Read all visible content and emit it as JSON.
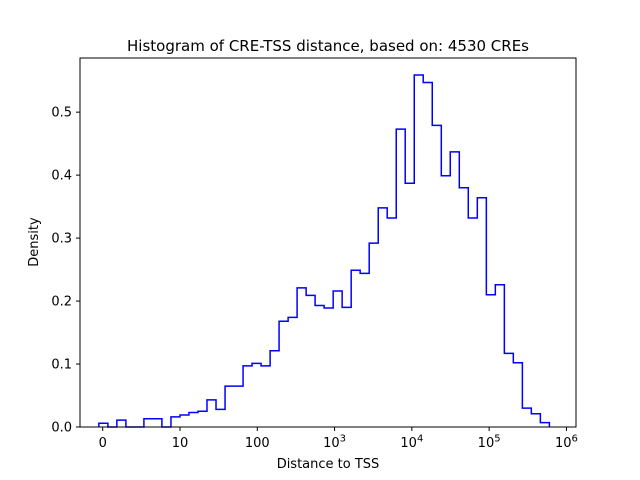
{
  "chart_data": {
    "type": "bar",
    "subtype": "step-histogram",
    "title": "Histogram of CRE-TSS distance, based on: 4530 CREs",
    "xlabel": "Distance to TSS",
    "ylabel": "Density",
    "x_scale": "symlog (linear from 0 to 10, then one decade per unit; u=0 maps to 0, u=k maps to 10^k)",
    "grid": false,
    "legend": "none",
    "line_color": "#0000ff",
    "axis_color": "#000000",
    "background_color": "#ffffff",
    "xlim_u": [
      -0.294,
      6.124
    ],
    "ylim": [
      0,
      0.586
    ],
    "bin_edges_u": [
      -0.05,
      0.067,
      0.183,
      0.3,
      0.417,
      0.533,
      0.65,
      0.766,
      0.883,
      1.0,
      1.116,
      1.233,
      1.349,
      1.466,
      1.583,
      1.699,
      1.816,
      1.932,
      2.049,
      2.166,
      2.282,
      2.399,
      2.515,
      2.632,
      2.748,
      2.865,
      2.982,
      3.098,
      3.215,
      3.331,
      3.448,
      3.565,
      3.681,
      3.798,
      3.914,
      4.031,
      4.147,
      4.264,
      4.381,
      4.497,
      4.614,
      4.73,
      4.847,
      4.964,
      5.08,
      5.197,
      5.313,
      5.43,
      5.546,
      5.663,
      5.78
    ],
    "bin_edges_distance_approx": [
      -0.5,
      0.7,
      1.8,
      3.0,
      4.2,
      5.3,
      6.5,
      7.7,
      8.8,
      10,
      13,
      17,
      22,
      29,
      38,
      50,
      65,
      86,
      112,
      146,
      192,
      251,
      327,
      428,
      560,
      733,
      959,
      1250,
      1640,
      2140,
      2800,
      3670,
      4800,
      6280,
      8210,
      10700,
      14000,
      18400,
      24000,
      31400,
      41100,
      53700,
      70300,
      92000,
      120000,
      157000,
      206000,
      269000,
      352000,
      460000,
      603000
    ],
    "densities": [
      0.006,
      0,
      0.011,
      0,
      0,
      0.013,
      0.013,
      0,
      0.016,
      0.019,
      0.023,
      0.025,
      0.043,
      0.028,
      0.065,
      0.065,
      0.097,
      0.101,
      0.097,
      0.121,
      0.168,
      0.174,
      0.221,
      0.209,
      0.193,
      0.189,
      0.216,
      0.19,
      0.249,
      0.244,
      0.292,
      0.348,
      0.332,
      0.473,
      0.387,
      0.559,
      0.547,
      0.479,
      0.399,
      0.437,
      0.38,
      0.332,
      0.364,
      0.21,
      0.226,
      0.117,
      0.102,
      0.03,
      0.021,
      0.007
    ],
    "x_ticks": [
      {
        "u": 0,
        "label": "0"
      },
      {
        "u": 1,
        "label": "10"
      },
      {
        "u": 2,
        "label": "100"
      },
      {
        "u": 3,
        "label": "10",
        "exp": "3"
      },
      {
        "u": 4,
        "label": "10",
        "exp": "4"
      },
      {
        "u": 5,
        "label": "10",
        "exp": "5"
      },
      {
        "u": 6,
        "label": "10",
        "exp": "6"
      }
    ],
    "y_ticks": [
      {
        "v": 0.0,
        "label": "0.0"
      },
      {
        "v": 0.1,
        "label": "0.1"
      },
      {
        "v": 0.2,
        "label": "0.2"
      },
      {
        "v": 0.3,
        "label": "0.3"
      },
      {
        "v": 0.4,
        "label": "0.4"
      },
      {
        "v": 0.5,
        "label": "0.5"
      }
    ]
  }
}
